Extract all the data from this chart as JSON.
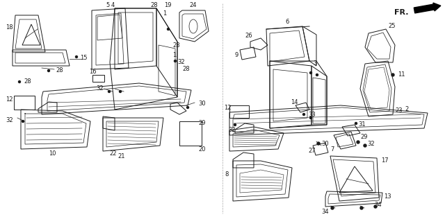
{
  "bg_color": "#ffffff",
  "line_color": "#1a1a1a",
  "fig_width": 6.4,
  "fig_height": 3.13,
  "dpi": 100,
  "fr_label": "FR.",
  "gray": "#888888",
  "lightgray": "#cccccc"
}
